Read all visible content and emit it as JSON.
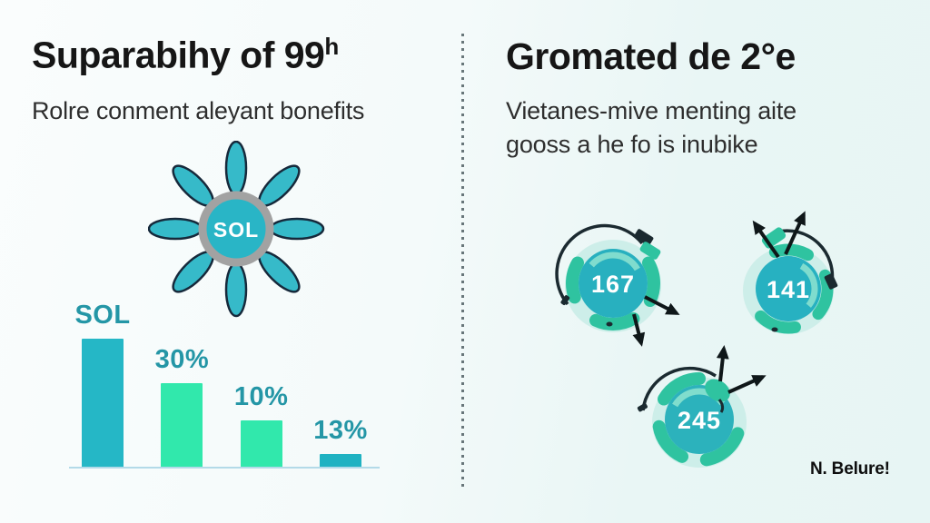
{
  "panels": {
    "left": {
      "title": "Suparabihy of 99",
      "title_sup": "h",
      "subtitle": "Rolre conment aleyant bonefits",
      "sun_label": "SOL"
    },
    "right": {
      "title": "Gromated de 2°e",
      "subtitle_line1": "Vietanes-mive menting aite",
      "subtitle_line2": "gooss a he fo is inubike",
      "gears": [
        {
          "value": "167"
        },
        {
          "value": "141"
        },
        {
          "value": "245"
        }
      ],
      "footer": "N. Belure!"
    }
  },
  "chart_data": {
    "type": "bar",
    "categories": [
      "SOL",
      "30%",
      "10%",
      "13%"
    ],
    "values": [
      100,
      66,
      37,
      11
    ],
    "value_unit": "percent-of-max-bar-height",
    "bar_colors": [
      "#25b7c6",
      "#31e8ac",
      "#31e8ac",
      "#1fb2c2"
    ],
    "label_color": "#2496a6",
    "title": "",
    "xlabel": "",
    "ylabel": "",
    "baseline_shown": true,
    "grid": false,
    "legend": false
  },
  "colors": {
    "teal_circle": "#28b0bf",
    "mint_chunk": "#2fc3a0",
    "halo_mint": "#cdeee9",
    "dark_ink": "#15232a",
    "gray_ring": "#a2a2a2",
    "bg_left": "#fafdfd",
    "bg_right": "#e7f5f4",
    "baseline": "#b3dae8"
  }
}
